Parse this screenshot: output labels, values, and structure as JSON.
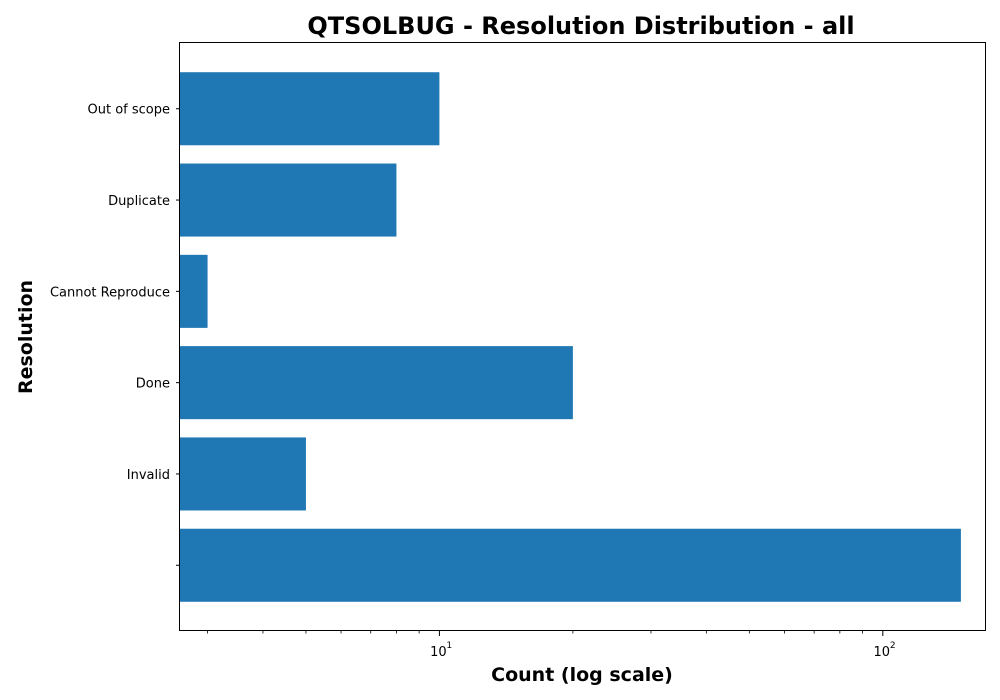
{
  "chart_data": {
    "type": "bar",
    "orientation": "horizontal",
    "title": "QTSOLBUG - Resolution Distribution - all",
    "xlabel": "Count (log scale)",
    "ylabel": "Resolution",
    "x_scale": "log",
    "xlim": [
      2.6,
      170
    ],
    "categories": [
      "",
      "Invalid",
      "Done",
      "Cannot Reproduce",
      "Duplicate",
      "Out of scope"
    ],
    "values": [
      150,
      5,
      20,
      3,
      8,
      10
    ],
    "x_ticks": [
      {
        "base": "10",
        "exp": "1",
        "value": 10
      },
      {
        "base": "10",
        "exp": "2",
        "value": 100
      }
    ],
    "grid": false,
    "legend": "none",
    "bar_color": "#1f77b4"
  }
}
